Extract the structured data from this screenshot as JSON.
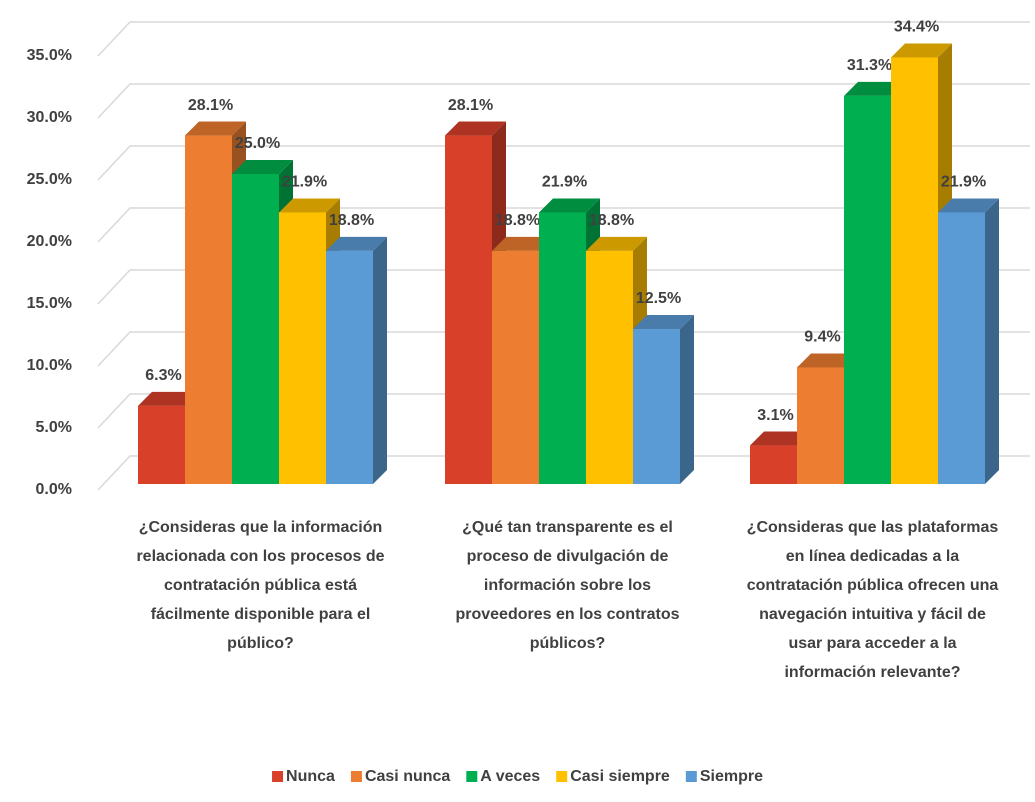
{
  "chart_data": {
    "type": "bar3d",
    "categories": [
      "¿Consideras que la información relacionada con los procesos de contratación pública está fácilmente disponible para el público?",
      "¿Qué tan transparente es el proceso de divulgación de información sobre los proveedores en los contratos públicos?",
      "¿Consideras que las plataformas en línea dedicadas a la contratación pública ofrecen una navegación intuitiva y fácil de usar para acceder a la información relevante?"
    ],
    "series": [
      {
        "name": "Nunca",
        "color": "#d9402a",
        "values": [
          6.3,
          28.1,
          3.1
        ],
        "value_labels": [
          "6.3%",
          "28.1%",
          "3.1%"
        ]
      },
      {
        "name": "Casi nunca",
        "color": "#ed7d31",
        "values": [
          28.1,
          18.8,
          9.4
        ],
        "value_labels": [
          "28.1%",
          "18.8%",
          "9.4%"
        ]
      },
      {
        "name": "A veces",
        "color": "#00b050",
        "values": [
          25.0,
          21.9,
          31.3
        ],
        "value_labels": [
          "25.0%",
          "21.9%",
          "31.3%"
        ]
      },
      {
        "name": "Casi siempre",
        "color": "#ffc000",
        "values": [
          21.9,
          18.8,
          34.4
        ],
        "value_labels": [
          "21.9%",
          "18.8%",
          "34.4%"
        ]
      },
      {
        "name": "Siempre",
        "color": "#5b9bd5",
        "values": [
          18.8,
          12.5,
          21.9
        ],
        "value_labels": [
          "18.8%",
          "12.5%",
          "21.9%"
        ]
      }
    ],
    "ylim": [
      0,
      35
    ],
    "yticks": [
      {
        "value": 0,
        "label": "0.0%"
      },
      {
        "value": 5,
        "label": "5.0%"
      },
      {
        "value": 10,
        "label": "10.0%"
      },
      {
        "value": 15,
        "label": "15.0%"
      },
      {
        "value": 20,
        "label": "20.0%"
      },
      {
        "value": 25,
        "label": "25.0%"
      },
      {
        "value": 30,
        "label": "30.0%"
      },
      {
        "value": 35,
        "label": "35.0%"
      }
    ],
    "grid": true,
    "legend": "bottom"
  }
}
